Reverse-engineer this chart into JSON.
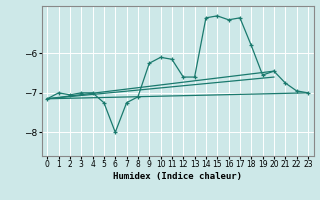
{
  "xlabel": "Humidex (Indice chaleur)",
  "ylabel": "",
  "background_color": "#cde8e8",
  "line_color": "#1a7a6e",
  "grid_color": "#ffffff",
  "xlim": [
    -0.5,
    23.5
  ],
  "ylim": [
    -8.6,
    -4.8
  ],
  "yticks": [
    -8,
    -7,
    -6
  ],
  "xticks": [
    0,
    1,
    2,
    3,
    4,
    5,
    6,
    7,
    8,
    9,
    10,
    11,
    12,
    13,
    14,
    15,
    16,
    17,
    18,
    19,
    20,
    21,
    22,
    23
  ],
  "line1_x": [
    0,
    1,
    2,
    3,
    4,
    5,
    6,
    7,
    8,
    9,
    10,
    11,
    12,
    13,
    14,
    15,
    16,
    17,
    18,
    19,
    20,
    21,
    22,
    23
  ],
  "line1_y": [
    -7.15,
    -7.0,
    -7.05,
    -7.0,
    -7.0,
    -7.25,
    -8.0,
    -7.25,
    -7.1,
    -6.25,
    -6.1,
    -6.15,
    -6.6,
    -6.6,
    -5.1,
    -5.05,
    -5.15,
    -5.1,
    -5.8,
    -6.55,
    -6.45,
    -6.75,
    -6.95,
    -7.0
  ],
  "line2_x": [
    0,
    23
  ],
  "line2_y": [
    -7.15,
    -7.0
  ],
  "line3_x": [
    0,
    20
  ],
  "line3_y": [
    -7.15,
    -6.45
  ],
  "line4_x": [
    0,
    20
  ],
  "line4_y": [
    -7.15,
    -6.6
  ]
}
